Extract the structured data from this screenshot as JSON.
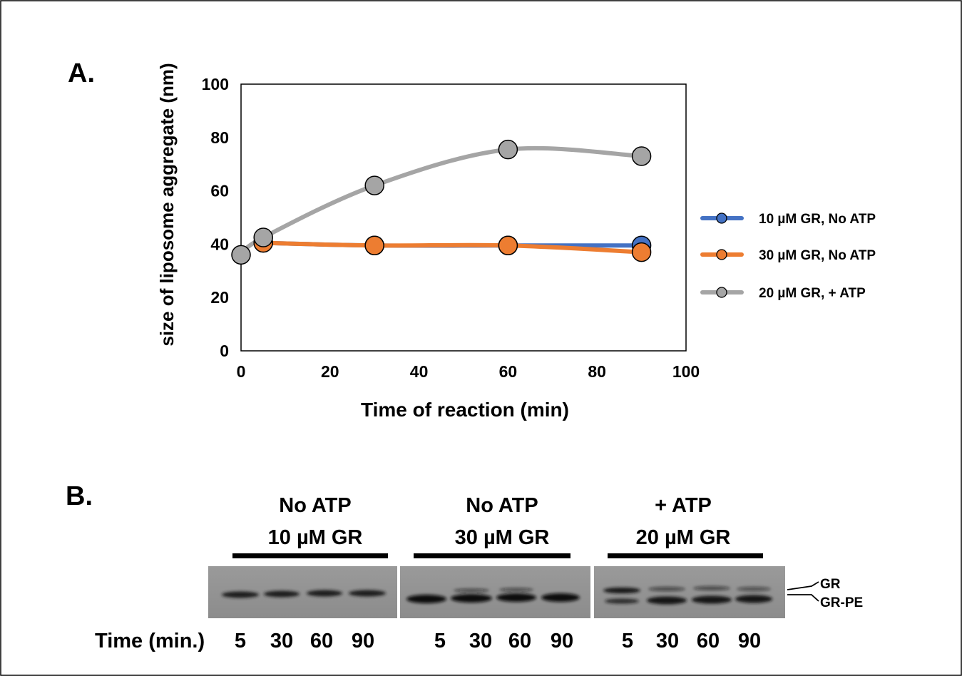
{
  "panel_a": {
    "label": "A.",
    "chart_data": {
      "type": "line",
      "title": "",
      "xlabel": "Time of reaction (min)",
      "ylabel": "size of liposome aggregate (nm)",
      "xlim": [
        0,
        100
      ],
      "ylim": [
        0,
        100
      ],
      "xticks": [
        0,
        20,
        40,
        60,
        80,
        100
      ],
      "yticks": [
        0,
        20,
        40,
        60,
        80,
        100
      ],
      "grid": false,
      "smooth": true,
      "legend_position": "right",
      "series": [
        {
          "name": "10 µM GR, No ATP",
          "color": "#4472C4",
          "x": [
            5,
            30,
            60,
            90
          ],
          "y": [
            40.5,
            39.5,
            39.5,
            39.5
          ]
        },
        {
          "name": "30 µM GR, No ATP",
          "color": "#ED7D31",
          "x": [
            5,
            30,
            60,
            90
          ],
          "y": [
            40.5,
            39.5,
            39.5,
            37
          ]
        },
        {
          "name": "20 µM GR, + ATP",
          "color": "#A5A5A5",
          "x": [
            0,
            5,
            30,
            60,
            90
          ],
          "y": [
            36,
            42.5,
            62,
            75.5,
            73
          ]
        }
      ]
    }
  },
  "panel_b": {
    "label": "B.",
    "groups": [
      {
        "line1": "No ATP",
        "line2": "10 µM GR",
        "lanes": [
          "5",
          "30",
          "60",
          "90"
        ]
      },
      {
        "line1": "No ATP",
        "line2": "30 µM GR",
        "lanes": [
          "5",
          "30",
          "60",
          "90"
        ]
      },
      {
        "line1": "+ ATP",
        "line2": "20 µM GR",
        "lanes": [
          "5",
          "30",
          "60",
          "90"
        ]
      }
    ],
    "row_label": "Time (min.)",
    "band_labels": {
      "upper": "GR",
      "lower": "GR-PE"
    }
  }
}
